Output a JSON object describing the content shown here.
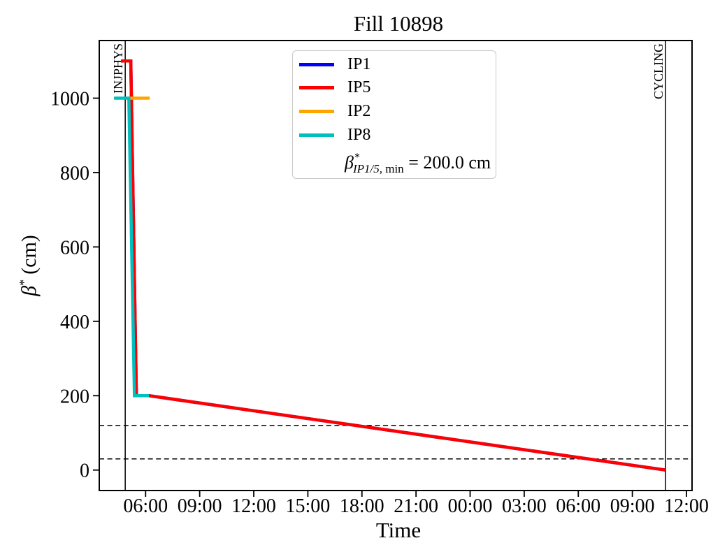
{
  "chart_data": {
    "type": "line",
    "title": "Fill 10898",
    "xlabel": "Time",
    "ylabel": "β* (cm)",
    "ylabel_parts": {
      "beta": "β",
      "sup": "*",
      "units": "(cm)"
    },
    "x_ticks": [
      "06:00",
      "09:00",
      "12:00",
      "15:00",
      "18:00",
      "21:00",
      "00:00",
      "03:00",
      "06:00",
      "09:00",
      "12:00"
    ],
    "x_tick_hours": [
      0,
      3,
      6,
      9,
      12,
      15,
      18,
      21,
      24,
      27,
      30
    ],
    "xlim_hours": [
      -2.57,
      30.31
    ],
    "y_ticks": [
      "0",
      "200",
      "400",
      "600",
      "800",
      "1000"
    ],
    "y_tick_values": [
      0,
      200,
      400,
      600,
      800,
      1000
    ],
    "ylim": [
      -55,
      1155
    ],
    "grid": false,
    "legend_position": "upper center",
    "series": [
      {
        "name": "IP1",
        "color": "#0000ff",
        "points_h_cm": [
          [
            -1.36,
            1100
          ],
          [
            -0.82,
            1100
          ],
          [
            -0.51,
            200
          ],
          [
            0.19,
            200
          ],
          [
            28.84,
            0
          ]
        ]
      },
      {
        "name": "IP5",
        "color": "#ff0000",
        "points_h_cm": [
          [
            -1.36,
            1100
          ],
          [
            -0.82,
            1100
          ],
          [
            -0.51,
            200
          ],
          [
            0.19,
            200
          ],
          [
            28.84,
            0
          ]
        ]
      },
      {
        "name": "IP2",
        "color": "#ffa500",
        "points_h_cm": [
          [
            -0.93,
            1000
          ],
          [
            0.23,
            1000
          ]
        ]
      },
      {
        "name": "IP8",
        "color": "#00bfbf",
        "points_h_cm": [
          [
            -1.75,
            1000
          ],
          [
            -0.93,
            1000
          ],
          [
            -0.62,
            200
          ],
          [
            0.19,
            200
          ]
        ]
      }
    ],
    "vlines": [
      {
        "label": "INJPHYS",
        "hour": -1.13
      },
      {
        "label": "CYCLING",
        "hour": 28.84
      }
    ],
    "hlines_dashed_cm": [
      120,
      30
    ],
    "annotation": "β*_IP1/5, min = 200.0 cm"
  },
  "legend": {
    "items": [
      {
        "label": "IP1",
        "color": "#0000ff"
      },
      {
        "label": "IP5",
        "color": "#ff0000"
      },
      {
        "label": "IP2",
        "color": "#ffa500"
      },
      {
        "label": "IP8",
        "color": "#00bfbf"
      }
    ],
    "note": {
      "beta": "β",
      "sup": "*",
      "sub_italic": "IP1/5,",
      "sub_roman": " min",
      "rest": " = 200.0 cm"
    }
  }
}
